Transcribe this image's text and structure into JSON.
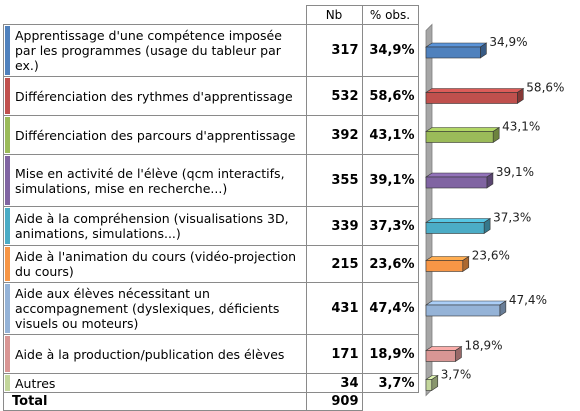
{
  "table": {
    "header_nb": "Nb",
    "header_pct": "% obs.",
    "total_label": "Total",
    "total_nb": "909",
    "rows": [
      {
        "label": "Apprentissage d'une compétence imposée par les programmes (usage du tableur par ex.)",
        "nb": "317",
        "pct": "34,9%",
        "color": "#4f81bd"
      },
      {
        "label": "Différenciation des rythmes d'apprentissage",
        "nb": "532",
        "pct": "58,6%",
        "color": "#c0504d"
      },
      {
        "label": "Différenciation des parcours d'apprentissage",
        "nb": "392",
        "pct": "43,1%",
        "color": "#9bbb59"
      },
      {
        "label": "Mise en activité de l'élève (qcm interactifs, simulations, mise en recherche...)",
        "nb": "355",
        "pct": "39,1%",
        "color": "#8064a2"
      },
      {
        "label": "Aide à la compréhension (visualisations 3D, animations, simulations...)",
        "nb": "339",
        "pct": "37,3%",
        "color": "#4bacc6"
      },
      {
        "label": "Aide à l'animation du cours (vidéo-projection du cours)",
        "nb": "215",
        "pct": "23,6%",
        "color": "#f79646"
      },
      {
        "label": "Aide aux élèves nécessitant un accompagnement (dyslexiques, déficients visuels ou moteurs)",
        "nb": "431",
        "pct": "47,4%",
        "color": "#95b3d7"
      },
      {
        "label": "Aide à la production/publication des élèves",
        "nb": "171",
        "pct": "18,9%",
        "color": "#d99694"
      },
      {
        "label": "Autres",
        "nb": "34",
        "pct": "3,7%",
        "color": "#c3d69b"
      }
    ]
  },
  "chart_data": {
    "type": "bar",
    "orientation": "horizontal",
    "style": "3d",
    "categories": [
      "Apprentissage d'une compétence imposée par les programmes (usage du tableur par ex.)",
      "Différenciation des rythmes d'apprentissage",
      "Différenciation des parcours d'apprentissage",
      "Mise en activité de l'élève (qcm interactifs, simulations, mise en recherche...)",
      "Aide à la compréhension (visualisations 3D, animations, simulations...)",
      "Aide à l'animation du cours (vidéo-projection du cours)",
      "Aide aux élèves nécessitant un accompagnement (dyslexiques, déficients visuels ou moteurs)",
      "Aide à la production/publication des élèves",
      "Autres"
    ],
    "values": [
      34.9,
      58.6,
      43.1,
      39.1,
      37.3,
      23.6,
      47.4,
      18.9,
      3.7
    ],
    "data_labels": [
      "34,9%",
      "58,6%",
      "43,1%",
      "39,1%",
      "37,3%",
      "23,6%",
      "47,4%",
      "18,9%",
      "3,7%"
    ],
    "colors": [
      "#4f81bd",
      "#c0504d",
      "#9bbb59",
      "#8064a2",
      "#4bacc6",
      "#f79646",
      "#95b3d7",
      "#d99694",
      "#c3d69b"
    ],
    "xlim": [
      0,
      60
    ],
    "grid": false,
    "legend": "none"
  }
}
